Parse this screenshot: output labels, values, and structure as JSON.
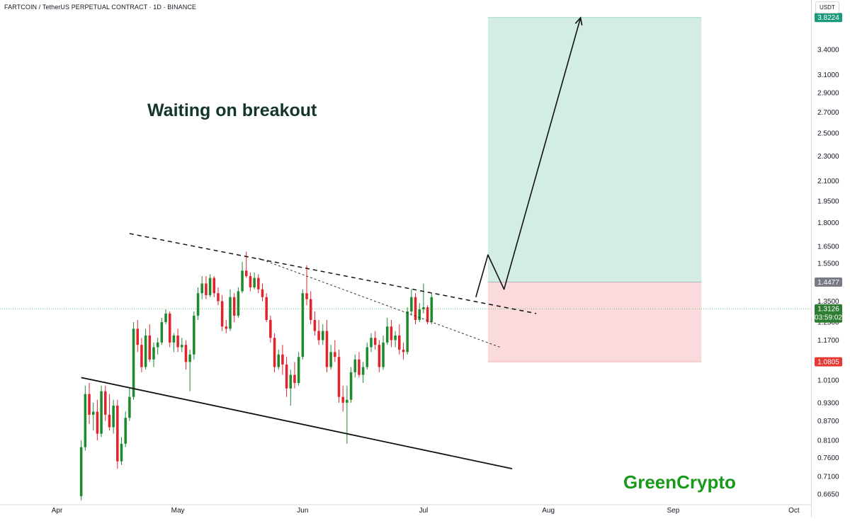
{
  "header": {
    "symbol_title": "FARTCOIN / TetherUS PERPETUAL CONTRACT · 1D · BINANCE",
    "currency": "USDT"
  },
  "annotation": {
    "text": "Waiting on breakout"
  },
  "watermark": {
    "text": "GreenCrypto"
  },
  "colors": {
    "up": "#26a69a",
    "up_body": "#1e8a2e",
    "down": "#e0242c",
    "profit_zone": "#d3ede6",
    "loss_zone": "#fadadd",
    "target_badge": "#1a9a7a",
    "stop_badge": "#e53935",
    "entry_badge": "#787b86",
    "current_badge": "#2e7d32"
  },
  "chart_data": {
    "type": "candlestick",
    "title": "FARTCOIN / TetherUS PERPETUAL CONTRACT · 1D · BINANCE",
    "interval": "1D",
    "y_scale": "log",
    "ylim": [
      0.62,
      3.9
    ],
    "xlim": [
      "2025-03-21",
      "2025-10-04"
    ],
    "x_ticks": [
      {
        "date": "2025-04-01",
        "label": "Apr"
      },
      {
        "date": "2025-05-01",
        "label": "May"
      },
      {
        "date": "2025-06-01",
        "label": "Jun"
      },
      {
        "date": "2025-07-01",
        "label": "Jul"
      },
      {
        "date": "2025-08-01",
        "label": "Aug"
      },
      {
        "date": "2025-09-01",
        "label": "Sep"
      },
      {
        "date": "2025-10-01",
        "label": "Oct"
      }
    ],
    "y_ticks": [
      "3.4000",
      "3.1000",
      "2.9000",
      "2.7000",
      "2.5000",
      "2.3000",
      "2.1000",
      "1.9500",
      "1.8000",
      "1.6500",
      "1.5500",
      "1.3500",
      "1.2500",
      "1.1700",
      "1.0100",
      "0.9300",
      "0.8700",
      "0.8100",
      "0.7600",
      "0.7100",
      "0.6650"
    ],
    "candles": {
      "start": "2025-04-07",
      "ohlc": [
        [
          0.66,
          0.81,
          0.65,
          0.79
        ],
        [
          0.79,
          0.99,
          0.78,
          0.96
        ],
        [
          0.96,
          1.0,
          0.86,
          0.89
        ],
        [
          0.89,
          0.93,
          0.84,
          0.9
        ],
        [
          0.9,
          0.94,
          0.81,
          0.83
        ],
        [
          0.83,
          0.99,
          0.82,
          0.97
        ],
        [
          0.97,
          0.99,
          0.87,
          0.89
        ],
        [
          0.89,
          0.96,
          0.84,
          0.85
        ],
        [
          0.85,
          0.94,
          0.83,
          0.92
        ],
        [
          0.92,
          0.94,
          0.73,
          0.75
        ],
        [
          0.75,
          0.82,
          0.74,
          0.8
        ],
        [
          0.8,
          0.9,
          0.79,
          0.88
        ],
        [
          0.88,
          0.98,
          0.87,
          0.95
        ],
        [
          0.95,
          1.25,
          0.94,
          1.22
        ],
        [
          1.22,
          1.26,
          1.12,
          1.15
        ],
        [
          1.15,
          1.18,
          1.04,
          1.06
        ],
        [
          1.06,
          1.22,
          1.05,
          1.19
        ],
        [
          1.19,
          1.24,
          1.08,
          1.09
        ],
        [
          1.09,
          1.16,
          1.06,
          1.14
        ],
        [
          1.14,
          1.18,
          1.11,
          1.16
        ],
        [
          1.16,
          1.27,
          1.15,
          1.25
        ],
        [
          1.25,
          1.31,
          1.24,
          1.29
        ],
        [
          1.29,
          1.3,
          1.14,
          1.16
        ],
        [
          1.16,
          1.2,
          1.12,
          1.19
        ],
        [
          1.19,
          1.22,
          1.12,
          1.14
        ],
        [
          1.14,
          1.18,
          1.12,
          1.15
        ],
        [
          1.15,
          1.17,
          1.05,
          1.08
        ],
        [
          1.08,
          1.13,
          0.97,
          1.11
        ],
        [
          1.11,
          1.3,
          1.09,
          1.28
        ],
        [
          1.28,
          1.42,
          1.26,
          1.39
        ],
        [
          1.39,
          1.48,
          1.36,
          1.44
        ],
        [
          1.44,
          1.48,
          1.36,
          1.38
        ],
        [
          1.38,
          1.49,
          1.37,
          1.47
        ],
        [
          1.47,
          1.48,
          1.37,
          1.39
        ],
        [
          1.39,
          1.42,
          1.33,
          1.35
        ],
        [
          1.35,
          1.38,
          1.21,
          1.23
        ],
        [
          1.23,
          1.26,
          1.2,
          1.22
        ],
        [
          1.22,
          1.41,
          1.21,
          1.37
        ],
        [
          1.37,
          1.39,
          1.25,
          1.28
        ],
        [
          1.28,
          1.42,
          1.27,
          1.4
        ],
        [
          1.4,
          1.56,
          1.39,
          1.51
        ],
        [
          1.51,
          1.62,
          1.47,
          1.48
        ],
        [
          1.48,
          1.5,
          1.4,
          1.42
        ],
        [
          1.42,
          1.5,
          1.41,
          1.47
        ],
        [
          1.47,
          1.49,
          1.39,
          1.41
        ],
        [
          1.41,
          1.44,
          1.35,
          1.37
        ],
        [
          1.37,
          1.39,
          1.25,
          1.26
        ],
        [
          1.26,
          1.28,
          1.16,
          1.18
        ],
        [
          1.18,
          1.2,
          1.04,
          1.06
        ],
        [
          1.06,
          1.13,
          1.05,
          1.11
        ],
        [
          1.11,
          1.15,
          1.03,
          1.07
        ],
        [
          1.07,
          1.1,
          0.95,
          0.98
        ],
        [
          0.98,
          1.05,
          0.92,
          1.03
        ],
        [
          1.03,
          1.08,
          0.98,
          1.0
        ],
        [
          1.0,
          1.12,
          0.99,
          1.1
        ],
        [
          1.1,
          1.41,
          1.09,
          1.39
        ],
        [
          1.39,
          1.54,
          1.33,
          1.36
        ],
        [
          1.36,
          1.4,
          1.24,
          1.26
        ],
        [
          1.26,
          1.3,
          1.19,
          1.21
        ],
        [
          1.21,
          1.26,
          1.15,
          1.17
        ],
        [
          1.17,
          1.24,
          1.15,
          1.21
        ],
        [
          1.21,
          1.26,
          1.04,
          1.06
        ],
        [
          1.06,
          1.15,
          1.05,
          1.12
        ],
        [
          1.12,
          1.17,
          1.08,
          1.1
        ],
        [
          1.1,
          1.13,
          0.93,
          0.95
        ],
        [
          0.95,
          0.99,
          0.9,
          0.93
        ],
        [
          0.93,
          0.99,
          0.8,
          0.94
        ],
        [
          0.94,
          1.06,
          0.93,
          1.04
        ],
        [
          1.04,
          1.11,
          1.02,
          1.09
        ],
        [
          1.09,
          1.12,
          1.02,
          1.03
        ],
        [
          1.03,
          1.08,
          1.0,
          1.06
        ],
        [
          1.06,
          1.16,
          1.05,
          1.14
        ],
        [
          1.14,
          1.2,
          1.12,
          1.18
        ],
        [
          1.18,
          1.21,
          1.13,
          1.15
        ],
        [
          1.15,
          1.17,
          1.04,
          1.06
        ],
        [
          1.06,
          1.19,
          1.05,
          1.16
        ],
        [
          1.16,
          1.27,
          1.15,
          1.23
        ],
        [
          1.23,
          1.26,
          1.14,
          1.17
        ],
        [
          1.17,
          1.21,
          1.14,
          1.19
        ],
        [
          1.19,
          1.24,
          1.11,
          1.13
        ],
        [
          1.13,
          1.16,
          1.09,
          1.12
        ],
        [
          1.12,
          1.32,
          1.11,
          1.3
        ],
        [
          1.3,
          1.41,
          1.28,
          1.37
        ],
        [
          1.37,
          1.39,
          1.24,
          1.26
        ],
        [
          1.26,
          1.34,
          1.25,
          1.31
        ],
        [
          1.31,
          1.44,
          1.29,
          1.32
        ],
        [
          1.32,
          1.33,
          1.24,
          1.25
        ],
        [
          1.25,
          1.39,
          1.24,
          1.37
        ]
      ]
    },
    "drawings": {
      "upper_trendline": {
        "style": "dashed",
        "from": {
          "date": "2025-04-19",
          "price": 1.73
        },
        "to": {
          "date": "2025-07-29",
          "price": 1.29
        }
      },
      "inner_trendline": {
        "style": "dotted",
        "from": {
          "date": "2025-05-21",
          "price": 1.58
        },
        "to": {
          "date": "2025-07-20",
          "price": 1.14
        }
      },
      "lower_trendline": {
        "style": "solid",
        "from": {
          "date": "2025-04-07",
          "price": 1.02
        },
        "to": {
          "date": "2025-07-23",
          "price": 0.73
        }
      },
      "projection_path": [
        {
          "date": "2025-07-14",
          "price": 1.37
        },
        {
          "date": "2025-07-17",
          "price": 1.6
        },
        {
          "date": "2025-07-21",
          "price": 1.41
        },
        {
          "date": "2025-08-09",
          "price": 3.82
        }
      ],
      "long_position": {
        "entry": 1.4477,
        "target": 3.8224,
        "stop": 1.0805,
        "from": "2025-07-17",
        "to": "2025-09-08"
      },
      "current_price_line": 1.3126
    },
    "price_labels": {
      "target": "3.8224",
      "entry": "1.4477",
      "current": "1.3126",
      "countdown": "03:59:02",
      "stop": "1.0805"
    },
    "annotations": [
      "Waiting on breakout",
      "GreenCrypto"
    ]
  }
}
